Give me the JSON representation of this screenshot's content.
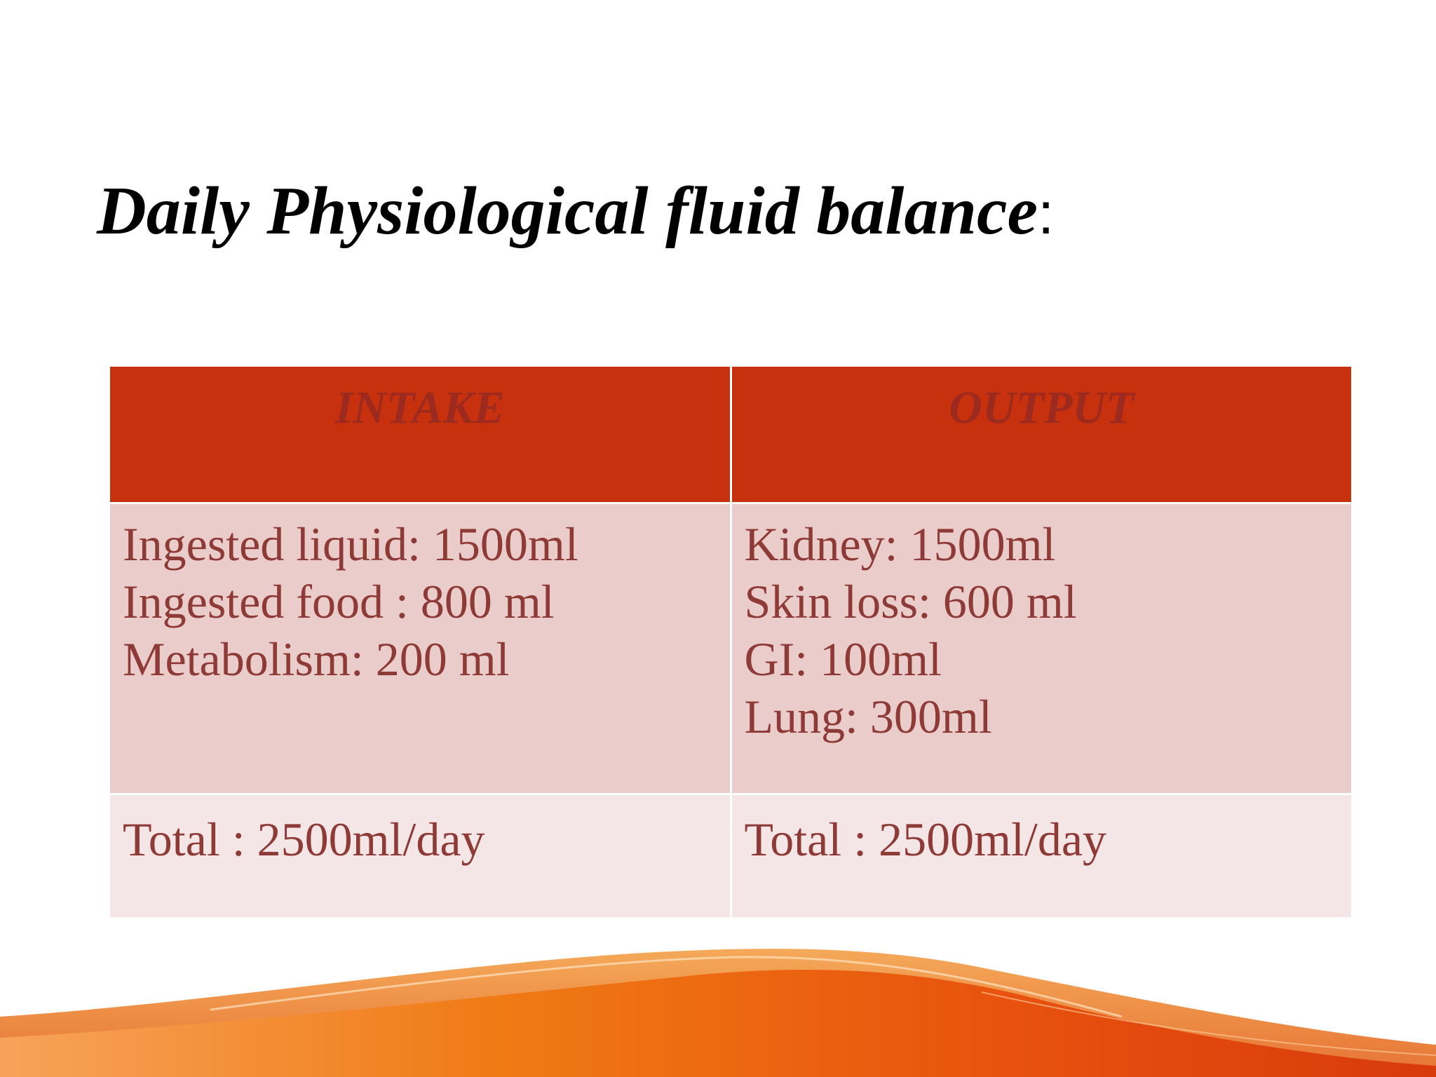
{
  "slide": {
    "title": "Daily Physiological fluid balance",
    "title_colon": ":"
  },
  "table": {
    "headers": [
      "INTAKE",
      "OUTPUT"
    ],
    "intake": {
      "items": [
        "Ingested liquid: 1500ml",
        "Ingested food : 800 ml",
        "Metabolism: 200 ml"
      ],
      "total": "Total : 2500ml/day"
    },
    "output": {
      "items": [
        "Kidney: 1500ml",
        "Skin loss: 600 ml",
        "GI: 100ml",
        "Lung: 300ml"
      ],
      "total": "Total : 2500ml/day"
    }
  },
  "colors": {
    "header_fill": "#c7310d",
    "body_fill": "#eaccca",
    "total_fill": "#f4e6e6",
    "body_text": "#8e3a36",
    "wave_orange": "#f07a14",
    "wave_red": "#d83a0c"
  }
}
